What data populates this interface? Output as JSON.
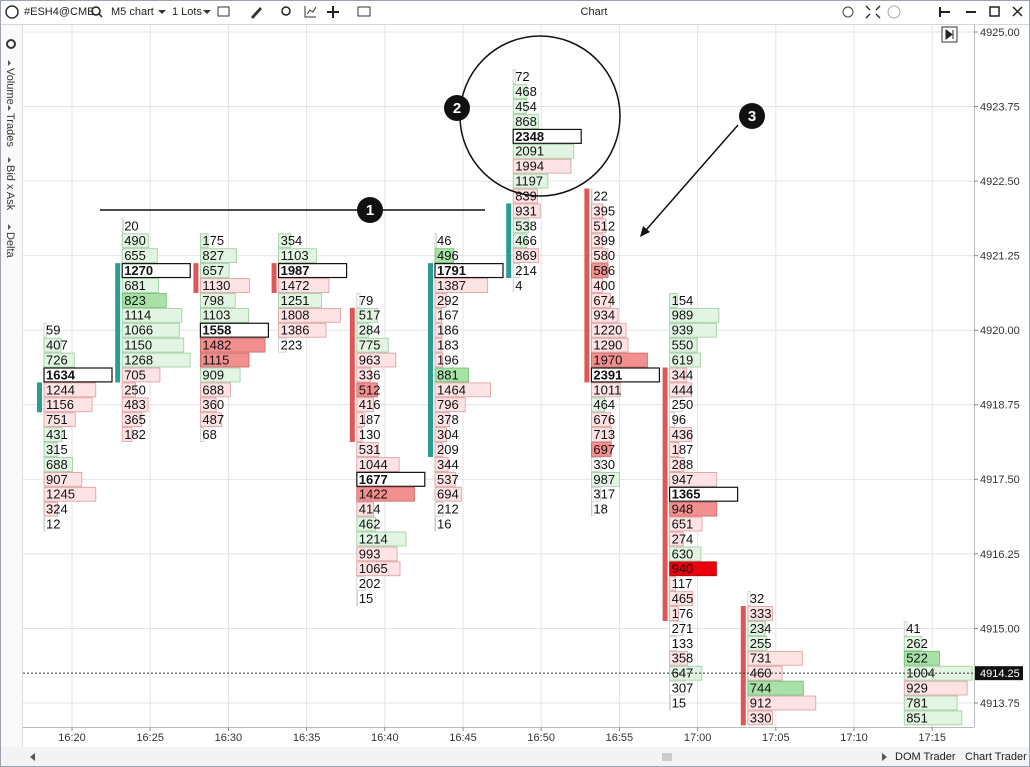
{
  "toolbar": {
    "symbol": "#ESH4@CME",
    "timeframe": "M5 chart",
    "lots": "1 Lots",
    "window_title": "Chart"
  },
  "side_panel": [
    "Volume",
    "Trades",
    "Bid x Ask",
    "Delta"
  ],
  "footer": [
    "DOM Trader",
    "Chart Trader"
  ],
  "annotations": [
    "1",
    "2",
    "3"
  ],
  "chart": {
    "price_ticks": [
      {
        "value": 4925,
        "label": "4925.00"
      },
      {
        "value": 4923.75,
        "label": "4923.75"
      },
      {
        "value": 4922.5,
        "label": "4922.50"
      },
      {
        "value": 4921.25,
        "label": "4921.25"
      },
      {
        "value": 4920,
        "label": "4920.00"
      },
      {
        "value": 4918.75,
        "label": "4918.75"
      },
      {
        "value": 4917.5,
        "label": "4917.50"
      },
      {
        "value": 4916.25,
        "label": "4916.25"
      },
      {
        "value": 4915,
        "label": "4915.00"
      },
      {
        "value": 4913.75,
        "label": "4913.75"
      }
    ],
    "current_price": {
      "value": 4914.25,
      "label": "4914.25"
    },
    "time_ticks": [
      "16:20",
      "16:25",
      "16:30",
      "16:35",
      "16:40",
      "16:45",
      "16:50",
      "16:55",
      "17:00",
      "17:05",
      "17:10",
      "17:15"
    ],
    "columns": [
      {
        "time": "16:20",
        "top": 4920,
        "open": 4918.75,
        "close": 4919,
        "poc": true,
        "tones": "wggwrrrgggrrrw",
        "values": [
          59,
          407,
          726,
          1634,
          1244,
          1156,
          751,
          431,
          315,
          688,
          907,
          1245,
          324,
          12
        ]
      },
      {
        "time": "16:25",
        "top": 4921.75,
        "open": 4919.25,
        "close": 4921,
        "poc": true,
        "tones": "wggwgGggggrrrrr",
        "values": [
          20,
          490,
          655,
          1270,
          681,
          823,
          1114,
          1066,
          1150,
          1268,
          705,
          250,
          483,
          365,
          182
        ]
      },
      {
        "time": "16:30",
        "top": 4921.5,
        "open": 4921,
        "close": 4920.75,
        "poc": true,
        "tones": "gggrggwRRgrrrw",
        "values": [
          175,
          827,
          657,
          1130,
          798,
          1103,
          1558,
          1482,
          1115,
          909,
          688,
          360,
          487,
          68
        ]
      },
      {
        "time": "16:35",
        "top": 4921.5,
        "open": 4921,
        "close": 4920.75,
        "poc": true,
        "tones": "ggwrgrrw",
        "values": [
          354,
          1103,
          1987,
          1472,
          1251,
          1808,
          1386,
          223
        ]
      },
      {
        "time": "16:40",
        "top": 4920.5,
        "open": 4920.25,
        "close": 4918.25,
        "poc": true,
        "tones": "wgggrrRrrrrrGRrggrrww",
        "values": [
          79,
          517,
          284,
          775,
          963,
          336,
          512,
          416,
          187,
          130,
          531,
          1044,
          1677,
          1422,
          414,
          462,
          1214,
          993,
          1065,
          202,
          15
        ]
      },
      {
        "time": "16:45",
        "top": 4921.5,
        "open": 4918,
        "close": 4921,
        "poc": true,
        "tones": "wGwrrrrrrGrrrrrrrrww",
        "values": [
          46,
          496,
          1791,
          1387,
          292,
          167,
          186,
          183,
          196,
          881,
          1464,
          796,
          378,
          304,
          209,
          344,
          537,
          694,
          212,
          16
        ]
      },
      {
        "time": "16:50",
        "top": 4924.25,
        "open": 4921,
        "close": 4922,
        "poc": true,
        "tones": "wgggwgrgrrggrww",
        "values": [
          72,
          468,
          454,
          868,
          2348,
          2091,
          1994,
          1197,
          839,
          931,
          538,
          466,
          869,
          214,
          4
        ]
      },
      {
        "time": "16:55",
        "top": 4922.25,
        "open": 4922.25,
        "close": 4919.25,
        "poc": true,
        "tones": "wrrrrRrrrrrRwrgrrRwgww",
        "values": [
          22,
          395,
          512,
          399,
          580,
          586,
          400,
          674,
          934,
          1220,
          1290,
          1970,
          2391,
          1011,
          464,
          676,
          713,
          697,
          330,
          987,
          317,
          18
        ]
      },
      {
        "time": "17:00",
        "top": 4920.5,
        "open": 4919.25,
        "close": 4915.25,
        "poc": true,
        "tones": "gggggrrwwrrrrwRrrgXrrrwwrgww",
        "values": [
          154,
          989,
          939,
          550,
          619,
          344,
          444,
          250,
          96,
          436,
          187,
          288,
          947,
          1365,
          948,
          651,
          274,
          630,
          940,
          117,
          465,
          176,
          271,
          133,
          358,
          647,
          307,
          15
        ]
      },
      {
        "time": "17:05",
        "top": 4915.5,
        "open": 4915.25,
        "close": 4913.5,
        "poc": false,
        "tones": "wrggrrGrr",
        "values": [
          32,
          333,
          234,
          255,
          731,
          460,
          744,
          912,
          330
        ]
      },
      {
        "time": "17:15",
        "top": 4915,
        "poc": false,
        "tones": "wgGgrgg",
        "values": [
          41,
          262,
          522,
          1004,
          929,
          781,
          851
        ]
      }
    ]
  }
}
